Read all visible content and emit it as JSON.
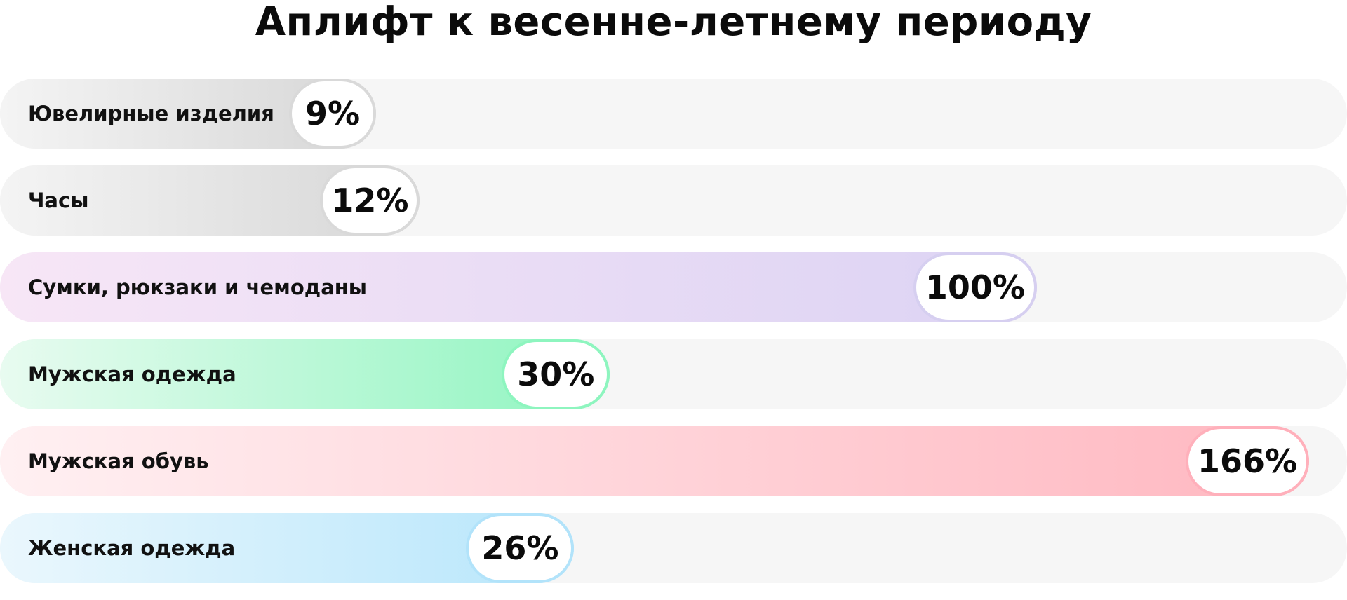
{
  "chart_data": {
    "type": "bar",
    "title": "Аплифт к весенне-летнему периоду",
    "categories": [
      "Ювелирные изделия",
      "Часы",
      "Сумки, рюкзаки и чемоданы",
      "Мужская одежда",
      "Мужская обувь",
      "Женская одежда"
    ],
    "values": [
      9,
      12,
      100,
      30,
      166,
      26
    ],
    "value_labels": [
      "9%",
      "12%",
      "100%",
      "30%",
      "166%",
      "26%"
    ],
    "unit": "%",
    "orientation": "horizontal",
    "colors": [
      {
        "from": "#f4f4f4",
        "to": "#d6d6d6",
        "border": "#d9d9d9"
      },
      {
        "from": "#f4f4f4",
        "to": "#d6d6d6",
        "border": "#d9d9d9"
      },
      {
        "from": "#f7e6f6",
        "to": "#dcd3f4",
        "border": "#d6cff0"
      },
      {
        "from": "#e8fbf0",
        "to": "#8ef5bf",
        "border": "#8ef5bf"
      },
      {
        "from": "#fff0f2",
        "to": "#ffb7c0",
        "border": "#ffb0bb"
      },
      {
        "from": "#eaf7fd",
        "to": "#b7e6fb",
        "border": "#b2e3fa"
      }
    ],
    "track_color": "#f6f6f6"
  }
}
